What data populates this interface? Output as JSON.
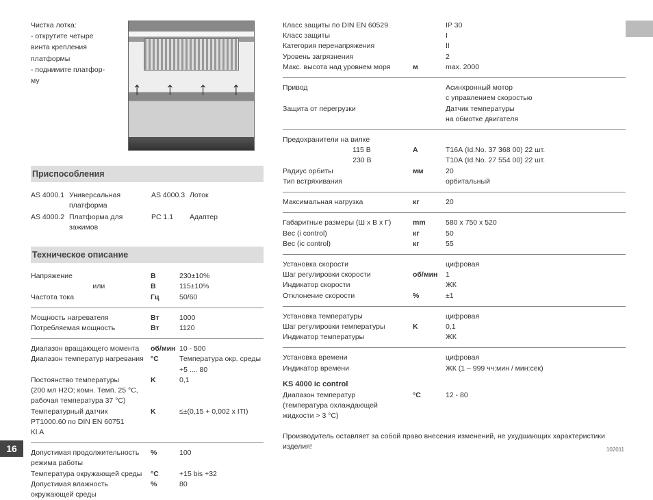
{
  "page_number": "16",
  "doc_id": "102011",
  "intro": {
    "l1": "Чистка лотка:",
    "l2": "- открутите четыре",
    "l3": "  винта крепления",
    "l4": "  платформы",
    "l5": "- поднимите платфор-",
    "l6": "  му"
  },
  "sec1_title": "Приспособления",
  "acc": {
    "a1_code": "AS 4000.1",
    "a1_name": "Универсальная платформа",
    "a2_code": "AS 4000.2",
    "a2_name": "Платформа для зажимов",
    "a3_code": "AS 4000.3",
    "a3_name": "Лоток",
    "a4_code": "PC 1.1",
    "a4_name": "Адаптер"
  },
  "sec2_title": "Техническое описание",
  "left_specs": [
    {
      "label": "Напряжение",
      "unit": "В",
      "value": "230±10%"
    },
    {
      "label": "                               или",
      "unit": "В",
      "value": "115±10%"
    },
    {
      "label": "Частота тока",
      "unit": "Гц",
      "value": "50/60"
    },
    {
      "hr": true
    },
    {
      "label": "Мощность нагревателя",
      "unit": "Вт",
      "value": "1000"
    },
    {
      "label": "Потребляемая мощность",
      "unit": "Вт",
      "value": "1120"
    },
    {
      "hr": true
    },
    {
      "label": "Диапазон вращающего момента",
      "unit": "об/мин",
      "value": "10 - 500"
    },
    {
      "label": "Диапазон температур нагревания",
      "unit": "°C",
      "value": "Температура окр. среды +5 .... 80"
    },
    {
      "label": "Постоянство температуры",
      "unit": "K",
      "value": "0,1"
    },
    {
      "label": "(200 мл H2O; комн. Темп. 25 °C,",
      "unit": "",
      "value": ""
    },
    {
      "label": "рабочая температура 37 °C)",
      "unit": "",
      "value": ""
    },
    {
      "label": "Температурный датчик",
      "unit": "K",
      "value": "≤±(0,15 + 0,002 x ITI)"
    },
    {
      "label": "PT1000.60 по DIN EN 60751",
      "unit": "",
      "value": ""
    },
    {
      "label": "Kl.A",
      "unit": "",
      "value": ""
    },
    {
      "hr": true
    },
    {
      "label": "Допустимая продолжительность",
      "unit": "%",
      "value": "100"
    },
    {
      "label": "режима работы",
      "unit": "",
      "value": ""
    },
    {
      "label": "Температура окружающей среды",
      "unit": "°C",
      "value": "+15 bis +32"
    },
    {
      "label": "Допустимая влажность",
      "unit": "%",
      "value": "80"
    },
    {
      "label": "окружающей среды",
      "unit": "",
      "value": ""
    }
  ],
  "right_specs": [
    {
      "label": "Класс защиты по DIN EN 60529",
      "unit": "",
      "value": "IP 30"
    },
    {
      "label": "Класс защиты",
      "unit": "",
      "value": "I"
    },
    {
      "label": "Категория перенапряжения",
      "unit": "",
      "value": "II"
    },
    {
      "label": "Уровень загрязнения",
      "unit": "",
      "value": "2"
    },
    {
      "label": "Макс. высота над уровнем моря",
      "unit": "м",
      "value": "max. 2000"
    },
    {
      "hr": true
    },
    {
      "label": "Привод",
      "unit": "",
      "value": "Асинхронный мотор"
    },
    {
      "label": "",
      "unit": "",
      "value": "с управлением скоростью"
    },
    {
      "label": "Защита от перегрузки",
      "unit": "",
      "value": "Датчик температуры"
    },
    {
      "label": "",
      "unit": "",
      "value": "на обмотке двигателя"
    },
    {
      "hr": true
    },
    {
      "label": "Предохранители на вилке",
      "unit": "",
      "value": ""
    },
    {
      "label": "                                   115 В",
      "unit": "A",
      "value": "T16А (Id.No. 37 368 00) 22 шт."
    },
    {
      "label": "                                   230 В",
      "unit": "",
      "value": "T10А (Id.No. 27 554 00) 22 шт."
    },
    {
      "label": "Радиус орбиты",
      "unit": "мм",
      "value": "20"
    },
    {
      "label": "Тип встряхивания",
      "unit": "",
      "value": "орбитальный"
    },
    {
      "hr": true
    },
    {
      "label": "Максимальная нагрузка",
      "unit": "кг",
      "value": "20"
    },
    {
      "hr": true
    },
    {
      "label": "Габаритные размеры (Ш x В x Г)",
      "unit": "mm",
      "value": "580 x 750 x 520"
    },
    {
      "label": "Вес (i control)",
      "unit": "кг",
      "value": "50"
    },
    {
      "label": "Вес (ic control)",
      "unit": "кг",
      "value": "55"
    },
    {
      "hr": true
    },
    {
      "label": "Установка скорости",
      "unit": "",
      "value": "цифровая"
    },
    {
      "label": "Шаг регулировки скорости",
      "unit": "об/мин",
      "value": "1"
    },
    {
      "label": "Индикатор скорости",
      "unit": "",
      "value": "ЖК"
    },
    {
      "label": "Отклонение скорости",
      "unit": "%",
      "value": "±1"
    },
    {
      "hr": true
    },
    {
      "label": "Установка температуры",
      "unit": "",
      "value": "цифровая"
    },
    {
      "label": "Шаг регулировки температуры",
      "unit": "K",
      "value": "0,1"
    },
    {
      "label": "Индикатор температуры",
      "unit": "",
      "value": "ЖК"
    },
    {
      "hr": true
    },
    {
      "label": "Установка времени",
      "unit": "",
      "value": "цифровая"
    },
    {
      "label": "Индикатор времени",
      "unit": "",
      "value": "ЖК (1 – 999 чч:мин / мин:сек)"
    }
  ],
  "ks_title": "KS 4000 ic control",
  "ks_specs": [
    {
      "label": "Диапазон температур",
      "unit": "°C",
      "value": "12 - 80"
    },
    {
      "label": "(температура охлаждающей",
      "unit": "",
      "value": ""
    },
    {
      "label": "жидкости > 3 °C)",
      "unit": "",
      "value": ""
    }
  ],
  "footnote": "Производитель оставляет за собой право внесения изменений, не ухудшающих характеристики изделия!"
}
